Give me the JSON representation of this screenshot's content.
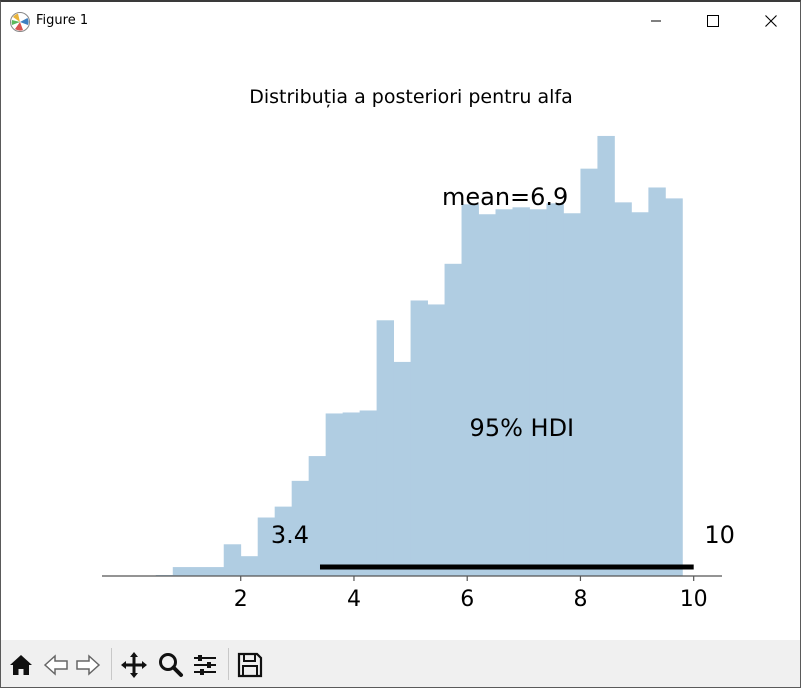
{
  "window": {
    "title": "Figure 1"
  },
  "toolbar": {
    "tools": [
      "home-icon",
      "back-arrow-icon",
      "forward-arrow-icon",
      "pan-icon",
      "zoom-icon",
      "configure-subplots-icon",
      "save-icon"
    ]
  },
  "chart_data": {
    "type": "bar",
    "title": "Distribuția a posteriori pentru alfa",
    "xlabel": "",
    "ylabel": "",
    "xlim": [
      -0.45,
      10.5
    ],
    "xticks": [
      "2",
      "4",
      "6",
      "8",
      "10"
    ],
    "y_axis_visible": false,
    "bar_color": "#b0cde2",
    "bins": [
      {
        "x0": 0.5,
        "x1": 0.8,
        "count": 2
      },
      {
        "x0": 0.8,
        "x1": 1.1,
        "count": 18
      },
      {
        "x0": 1.1,
        "x1": 1.4,
        "count": 18
      },
      {
        "x0": 1.4,
        "x1": 1.7,
        "count": 18
      },
      {
        "x0": 1.7,
        "x1": 2.0,
        "count": 64
      },
      {
        "x0": 2.0,
        "x1": 2.3,
        "count": 40
      },
      {
        "x0": 2.3,
        "x1": 2.6,
        "count": 118
      },
      {
        "x0": 2.6,
        "x1": 2.9,
        "count": 140
      },
      {
        "x0": 2.9,
        "x1": 3.2,
        "count": 192
      },
      {
        "x0": 3.2,
        "x1": 3.5,
        "count": 242
      },
      {
        "x0": 3.5,
        "x1": 3.8,
        "count": 328
      },
      {
        "x0": 3.8,
        "x1": 4.1,
        "count": 330
      },
      {
        "x0": 4.1,
        "x1": 4.4,
        "count": 334
      },
      {
        "x0": 4.4,
        "x1": 4.7,
        "count": 516
      },
      {
        "x0": 4.7,
        "x1": 5.0,
        "count": 432
      },
      {
        "x0": 5.0,
        "x1": 5.3,
        "count": 556
      },
      {
        "x0": 5.3,
        "x1": 5.6,
        "count": 548
      },
      {
        "x0": 5.6,
        "x1": 5.9,
        "count": 630
      },
      {
        "x0": 5.9,
        "x1": 6.2,
        "count": 750
      },
      {
        "x0": 6.2,
        "x1": 6.5,
        "count": 730
      },
      {
        "x0": 6.5,
        "x1": 6.8,
        "count": 740
      },
      {
        "x0": 6.8,
        "x1": 7.1,
        "count": 744
      },
      {
        "x0": 7.1,
        "x1": 7.4,
        "count": 740
      },
      {
        "x0": 7.4,
        "x1": 7.7,
        "count": 752
      },
      {
        "x0": 7.7,
        "x1": 8.0,
        "count": 732
      },
      {
        "x0": 8.0,
        "x1": 8.3,
        "count": 822
      },
      {
        "x0": 8.3,
        "x1": 8.6,
        "count": 888
      },
      {
        "x0": 8.6,
        "x1": 8.9,
        "count": 754
      },
      {
        "x0": 8.9,
        "x1": 9.2,
        "count": 734
      },
      {
        "x0": 9.2,
        "x1": 9.5,
        "count": 784
      },
      {
        "x0": 9.5,
        "x1": 9.8,
        "count": 762
      }
    ],
    "ylim": [
      0,
      900
    ],
    "mean": 6.9,
    "mean_label": "mean=6.9",
    "hdi": {
      "label": "95% HDI",
      "low": 3.4,
      "high": 10,
      "low_label": "3.4",
      "high_label": "10",
      "line_color": "#000000"
    },
    "grid": false
  }
}
